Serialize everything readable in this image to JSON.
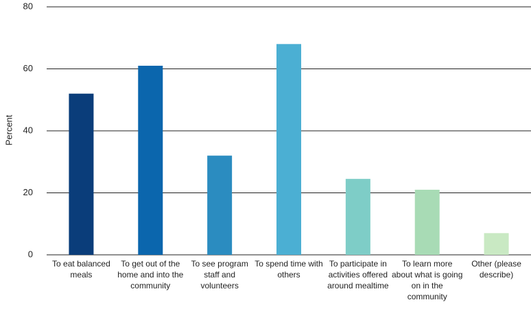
{
  "chart_data": {
    "type": "bar",
    "y_label": "Percent",
    "categories": [
      "To eat balanced meals",
      "To get out of the home and into the community",
      "To see program staff and volunteers",
      "To spend time with others",
      "To participate in activities offered around mealtime",
      "To learn more about what is going on in the community",
      "Other (please describe)"
    ],
    "values": [
      52,
      61,
      32,
      68,
      24.5,
      21,
      7
    ],
    "colors": [
      "#0a3d7a",
      "#0b66ad",
      "#2b8cc0",
      "#4bafd3",
      "#7ecdc7",
      "#a8dbb5",
      "#c9e9c3"
    ],
    "ylim": [
      0,
      80
    ],
    "yticks": [
      0,
      20,
      40,
      60,
      80
    ],
    "grid": true
  }
}
